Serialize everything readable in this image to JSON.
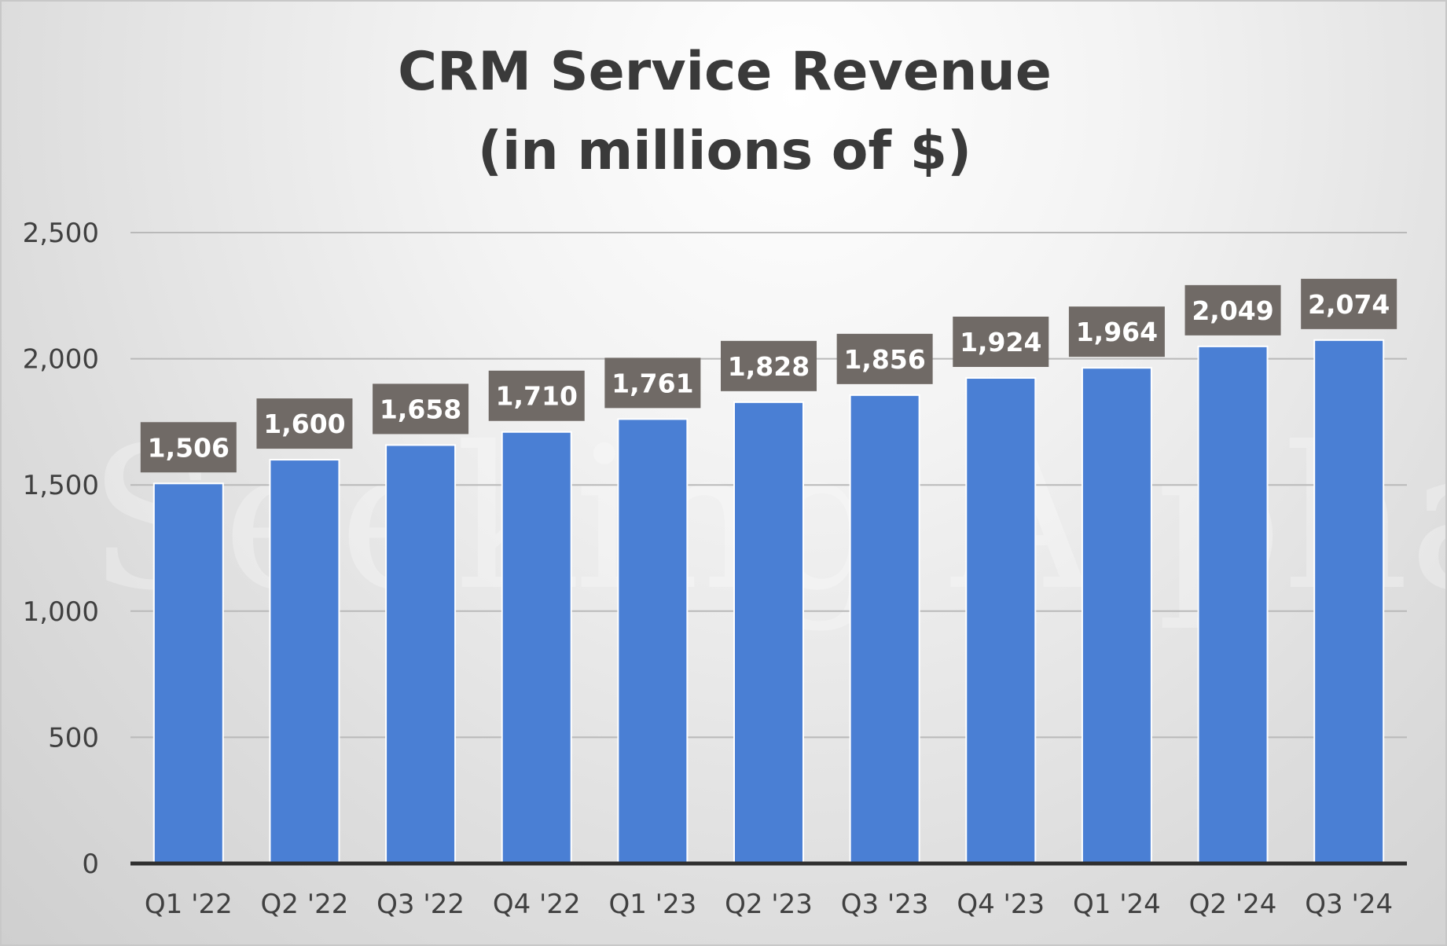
{
  "chart_data": {
    "type": "bar",
    "title_lines": [
      "CRM Service Revenue",
      "(in millions of $)"
    ],
    "categories": [
      "Q1 '22",
      "Q2 '22",
      "Q3 '22",
      "Q4 '22",
      "Q1 '23",
      "Q2 '23",
      "Q3 '23",
      "Q4 '23",
      "Q1 '24",
      "Q2 '24",
      "Q3 '24"
    ],
    "values": [
      1506,
      1600,
      1658,
      1710,
      1761,
      1828,
      1856,
      1924,
      1964,
      2049,
      2074
    ],
    "data_labels": [
      "1,506",
      "1,600",
      "1,658",
      "1,710",
      "1,761",
      "1,828",
      "1,856",
      "1,924",
      "1,964",
      "2,049",
      "2,074"
    ],
    "yticks": [
      0,
      500,
      1000,
      1500,
      2000,
      2500
    ],
    "ytick_labels": [
      "0",
      "500",
      "1,000",
      "1,500",
      "2,000",
      "2,500"
    ],
    "ylim": [
      0,
      2500
    ],
    "xlabel": "",
    "ylabel": "",
    "grid": true,
    "legend": "none",
    "bar_color": "#4a7fd4",
    "label_box_color": "#706a66",
    "watermark": "Seeking Alpha α"
  }
}
